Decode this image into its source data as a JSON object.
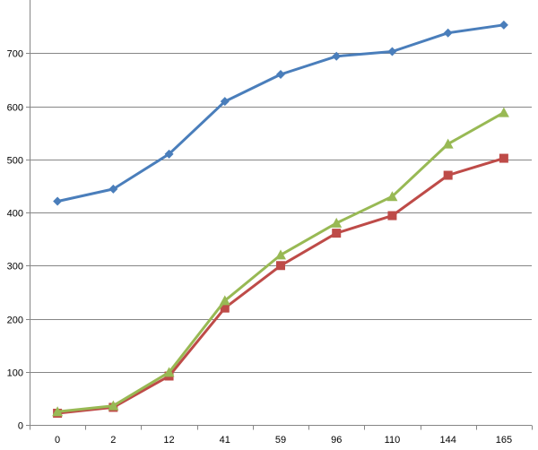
{
  "chart_data": {
    "type": "line",
    "categories": [
      "0",
      "2",
      "12",
      "41",
      "59",
      "96",
      "110",
      "144",
      "165"
    ],
    "ylim": [
      0,
      800
    ],
    "y_ticks": [
      0,
      100,
      200,
      300,
      400,
      500,
      600,
      700
    ],
    "grid": "horizontal",
    "legend": "none",
    "series": [
      {
        "color": "#4a7ebb",
        "marker": "diamond",
        "values": [
          421,
          444,
          510,
          609,
          660,
          694,
          703,
          738,
          753
        ]
      },
      {
        "color": "#be4b48",
        "marker": "square",
        "values": [
          22,
          33,
          92,
          220,
          300,
          361,
          394,
          470,
          502
        ]
      },
      {
        "color": "#98b954",
        "marker": "triangle",
        "values": [
          25,
          36,
          99,
          234,
          320,
          380,
          430,
          529,
          588
        ]
      }
    ]
  }
}
